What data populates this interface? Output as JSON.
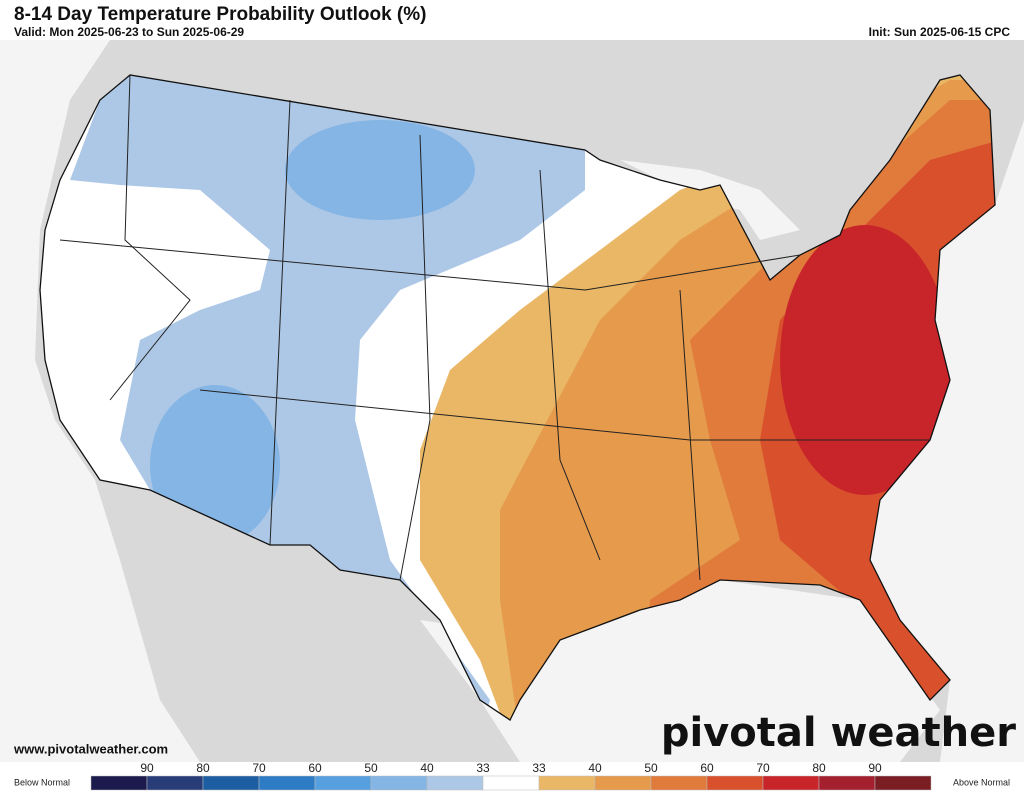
{
  "header": {
    "title": "8-14 Day Temperature Probability Outlook (%)",
    "valid": "Valid: Mon 2025-06-23 to Sun 2025-06-29",
    "init": "Init: Sun 2025-06-15 CPC"
  },
  "footer": {
    "website": "www.pivotalweather.com",
    "logo": "pivotal weather"
  },
  "legend": {
    "below_label": "Below Normal",
    "above_label": "Above Normal",
    "labels": [
      90,
      80,
      70,
      60,
      50,
      40,
      33,
      33,
      40,
      50,
      60,
      70,
      80,
      90
    ],
    "colors": [
      "#1b1b4d",
      "#283d78",
      "#1d5ea3",
      "#2f7cc6",
      "#57a0e0",
      "#84b5e4",
      "#adc8e6",
      "#ffffff",
      "#e9b766",
      "#e59a4c",
      "#e07b3c",
      "#d8502c",
      "#c8252a",
      "#a5202e",
      "#7a1e24"
    ]
  }
}
